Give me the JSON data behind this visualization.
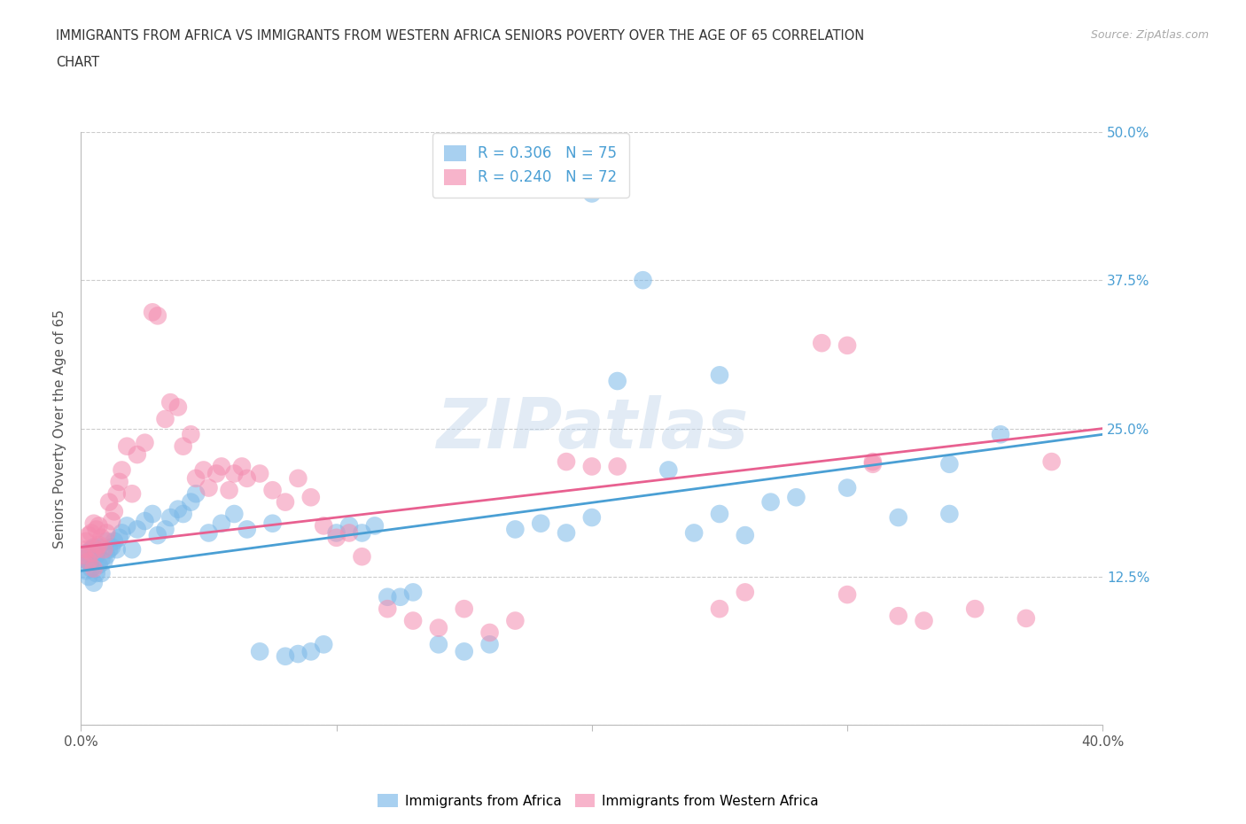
{
  "title_line1": "IMMIGRANTS FROM AFRICA VS IMMIGRANTS FROM WESTERN AFRICA SENIORS POVERTY OVER THE AGE OF 65 CORRELATION",
  "title_line2": "CHART",
  "source_text": "Source: ZipAtlas.com",
  "watermark": "ZIPatlas",
  "ylabel": "Seniors Poverty Over the Age of 65",
  "xlim": [
    0.0,
    0.4
  ],
  "ylim": [
    0.0,
    0.5
  ],
  "xtick_positions": [
    0.0,
    0.1,
    0.2,
    0.3,
    0.4
  ],
  "xtick_labels": [
    "0.0%",
    "",
    "",
    "",
    "40.0%"
  ],
  "ytick_positions": [
    0.0,
    0.125,
    0.25,
    0.375,
    0.5
  ],
  "ytick_labels_right": [
    "",
    "12.5%",
    "25.0%",
    "37.5%",
    "50.0%"
  ],
  "color_blue": "#7ab8e8",
  "color_pink": "#f48cb0",
  "legend_R1": "R = 0.306",
  "legend_N1": "N = 75",
  "legend_R2": "R = 0.240",
  "legend_N2": "N = 72",
  "blue_x": [
    0.001,
    0.002,
    0.002,
    0.003,
    0.003,
    0.004,
    0.004,
    0.005,
    0.005,
    0.006,
    0.006,
    0.007,
    0.007,
    0.008,
    0.008,
    0.009,
    0.01,
    0.01,
    0.011,
    0.012,
    0.013,
    0.014,
    0.015,
    0.016,
    0.018,
    0.02,
    0.022,
    0.025,
    0.028,
    0.03,
    0.033,
    0.035,
    0.038,
    0.04,
    0.043,
    0.045,
    0.05,
    0.055,
    0.06,
    0.065,
    0.07,
    0.075,
    0.08,
    0.085,
    0.09,
    0.095,
    0.1,
    0.105,
    0.11,
    0.115,
    0.12,
    0.125,
    0.13,
    0.14,
    0.15,
    0.16,
    0.17,
    0.18,
    0.19,
    0.2,
    0.21,
    0.22,
    0.24,
    0.25,
    0.26,
    0.27,
    0.28,
    0.3,
    0.32,
    0.34,
    0.36,
    0.34,
    0.25,
    0.23,
    0.2
  ],
  "blue_y": [
    0.14,
    0.13,
    0.145,
    0.125,
    0.138,
    0.132,
    0.148,
    0.12,
    0.15,
    0.128,
    0.143,
    0.135,
    0.15,
    0.128,
    0.14,
    0.138,
    0.143,
    0.155,
    0.148,
    0.15,
    0.155,
    0.148,
    0.158,
    0.162,
    0.168,
    0.148,
    0.165,
    0.172,
    0.178,
    0.16,
    0.165,
    0.175,
    0.182,
    0.178,
    0.188,
    0.195,
    0.162,
    0.17,
    0.178,
    0.165,
    0.062,
    0.17,
    0.058,
    0.06,
    0.062,
    0.068,
    0.162,
    0.168,
    0.162,
    0.168,
    0.108,
    0.108,
    0.112,
    0.068,
    0.062,
    0.068,
    0.165,
    0.17,
    0.162,
    0.175,
    0.29,
    0.375,
    0.162,
    0.178,
    0.16,
    0.188,
    0.192,
    0.2,
    0.175,
    0.178,
    0.245,
    0.22,
    0.295,
    0.215,
    0.448
  ],
  "pink_x": [
    0.001,
    0.002,
    0.002,
    0.003,
    0.003,
    0.004,
    0.004,
    0.005,
    0.005,
    0.006,
    0.006,
    0.007,
    0.007,
    0.008,
    0.009,
    0.01,
    0.011,
    0.012,
    0.013,
    0.014,
    0.015,
    0.016,
    0.018,
    0.02,
    0.022,
    0.025,
    0.028,
    0.03,
    0.033,
    0.035,
    0.038,
    0.04,
    0.043,
    0.045,
    0.048,
    0.05,
    0.053,
    0.055,
    0.058,
    0.06,
    0.063,
    0.065,
    0.07,
    0.075,
    0.08,
    0.085,
    0.09,
    0.095,
    0.1,
    0.105,
    0.11,
    0.12,
    0.13,
    0.14,
    0.15,
    0.16,
    0.17,
    0.19,
    0.2,
    0.21,
    0.25,
    0.26,
    0.29,
    0.3,
    0.31,
    0.32,
    0.33,
    0.35,
    0.37,
    0.38,
    0.3,
    0.31
  ],
  "pink_y": [
    0.143,
    0.148,
    0.155,
    0.138,
    0.16,
    0.145,
    0.162,
    0.132,
    0.17,
    0.148,
    0.165,
    0.152,
    0.168,
    0.158,
    0.148,
    0.162,
    0.188,
    0.172,
    0.18,
    0.195,
    0.205,
    0.215,
    0.235,
    0.195,
    0.228,
    0.238,
    0.348,
    0.345,
    0.258,
    0.272,
    0.268,
    0.235,
    0.245,
    0.208,
    0.215,
    0.2,
    0.212,
    0.218,
    0.198,
    0.212,
    0.218,
    0.208,
    0.212,
    0.198,
    0.188,
    0.208,
    0.192,
    0.168,
    0.158,
    0.162,
    0.142,
    0.098,
    0.088,
    0.082,
    0.098,
    0.078,
    0.088,
    0.222,
    0.218,
    0.218,
    0.098,
    0.112,
    0.322,
    0.32,
    0.22,
    0.092,
    0.088,
    0.098,
    0.09,
    0.222,
    0.11,
    0.222
  ]
}
